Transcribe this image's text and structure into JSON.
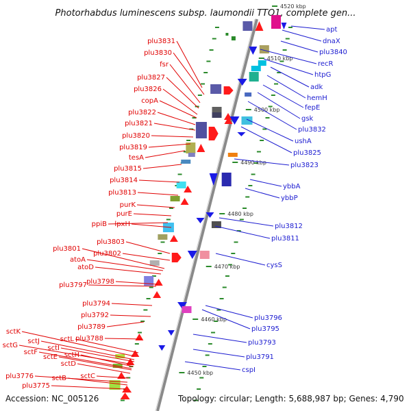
{
  "title": "Photorhabdus luminescens subsp. laumondii TTO1, complete gen...",
  "footer": {
    "accession": "Accession: NC_005126",
    "topology": "Topology: circular; Length: 5,688,987 bp; Genes: 4,790"
  },
  "scale_labels": [
    "4520 kbp",
    "4510 kbp",
    "4500 kbp",
    "4490 kbp",
    "4480 kbp",
    "4470 kbp",
    "4460 kbp",
    "4450 kbp"
  ],
  "left_genes": [
    "plu3831",
    "plu3830",
    "fsr",
    "plu3827",
    "plu3826",
    "copA",
    "plu3822",
    "plu3821",
    "plu3820",
    "plu3819",
    "tesA",
    "plu3815",
    "plu3814",
    "plu3813",
    "purK",
    "purE",
    "ppiB",
    "lpxH",
    "plu3803",
    "plu3802",
    "plu3801",
    "atoA",
    "atoD",
    "plu3798",
    "plu3797",
    "plu3794",
    "plu3792",
    "plu3789",
    "plu3788",
    "sctL",
    "sctK",
    "sctJ",
    "sctI",
    "sctG",
    "sctH",
    "sctF",
    "sctE",
    "sctD",
    "sctC",
    "plu3776",
    "sctB",
    "plu3775"
  ],
  "right_genes": [
    "apt",
    "dnaX",
    "plu3840",
    "recR",
    "htpG",
    "adk",
    "hemH",
    "fepE",
    "gsk",
    "plu3832",
    "ushA",
    "plu3825",
    "plu3823",
    "ybbA",
    "ybbP",
    "plu3812",
    "plu3811",
    "cysS",
    "plu3796",
    "plu3795",
    "plu3793",
    "plu3791",
    "cspI"
  ],
  "colors": {
    "forward_strand": "#ff1a1a",
    "reverse_strand": "#1a1ae6",
    "left_label": "#e00000",
    "right_label": "#1a1ad0",
    "backbone": "#8a8a8a",
    "tick": "#2a8a2a"
  }
}
